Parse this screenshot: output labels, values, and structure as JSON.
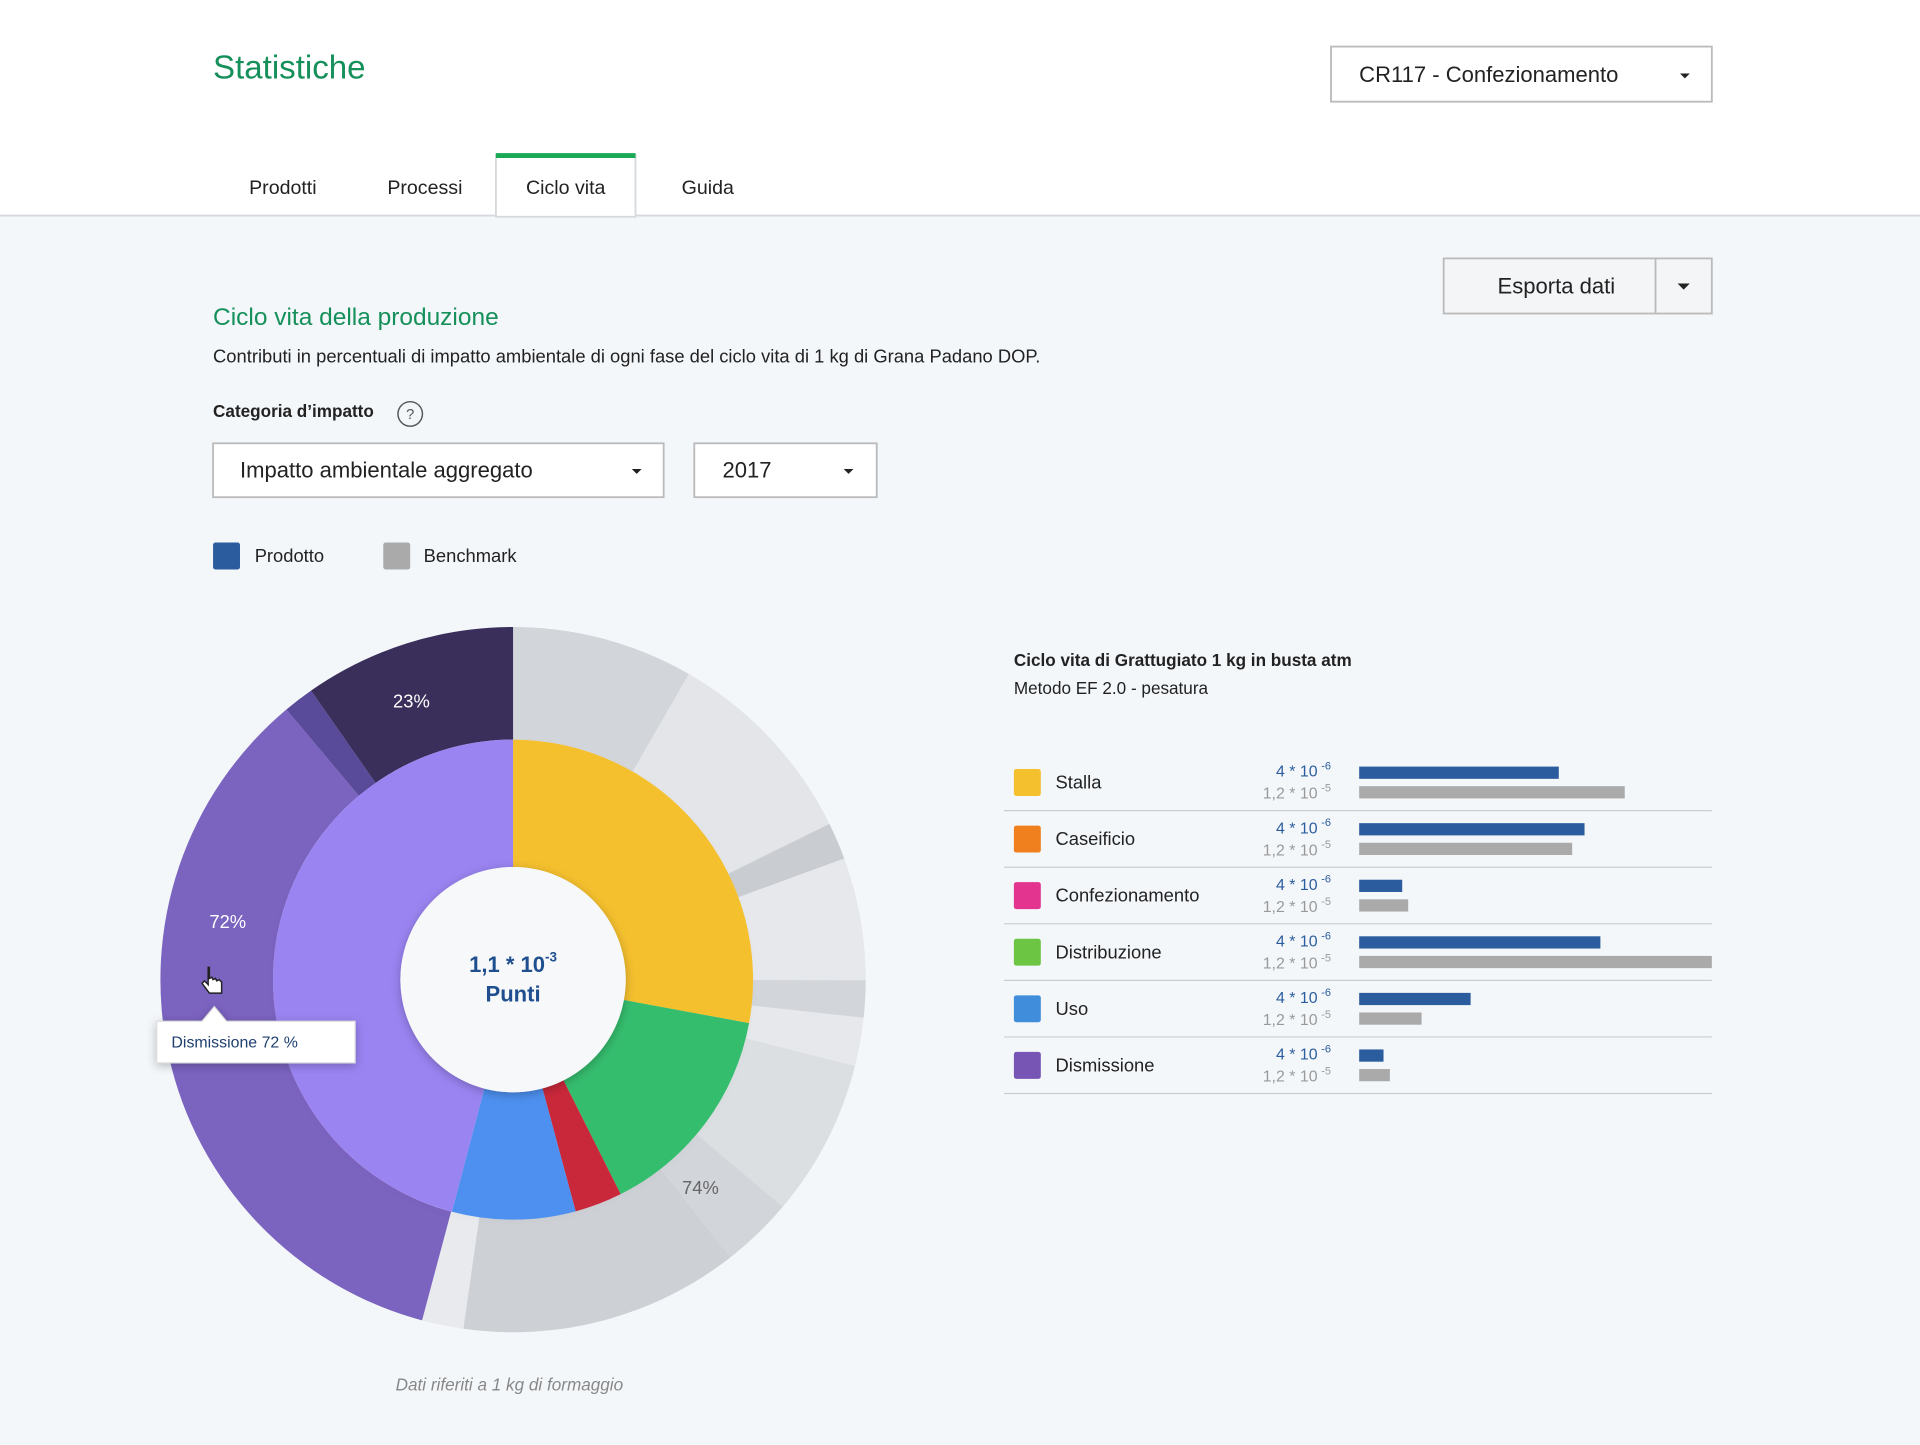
{
  "header": {
    "title": "Statistiche",
    "selector": "CR117 - Confezionamento"
  },
  "tabs": [
    "Prodotti",
    "Processi",
    "Ciclo vita",
    "Guida"
  ],
  "active_tab": 2,
  "export_button": "Esporta dati",
  "section": {
    "title": "Ciclo vita della produzione",
    "description": "Contributi in percentuali di impatto ambientale di ogni fase del ciclo vita di 1 kg di Grana Padano DOP."
  },
  "filter": {
    "label": "Categoria d’impatto",
    "help": "?",
    "category": "Impatto ambientale aggregato",
    "year": "2017"
  },
  "chart_data": [
    {
      "type": "pie",
      "rings": [
        {
          "values": [
            27.9,
            14.7,
            3.2,
            8.3,
            45.9
          ],
          "colors": [
            "#f5c02e",
            "#35bd6e",
            "#c8283a",
            "#4d90f0",
            "#9a84f2"
          ]
        },
        {
          "values": [
            8.3,
            9.4,
            1.7,
            5.6,
            1.7,
            2.2,
            7.2,
            3.3,
            12.8,
            1.9,
            34.7,
            1.4,
            9.7
          ],
          "colors": [
            "#d2d5d9",
            "#e3e5e8",
            "#c9ccd0",
            "#e6e8eb",
            "#d2d5d9",
            "#e6e8eb",
            "#dcdfe2",
            "#d2d5d9",
            "#cdd0d4",
            "#e8eaed",
            "#7b63c0",
            "#5a4a9a",
            "#3a2f5b"
          ]
        }
      ],
      "annotations": [
        "23%",
        "72%",
        "74%"
      ],
      "center": {
        "base": "1,1 * 10",
        "exp": "-3",
        "unit": "Punti"
      },
      "tooltip": "Dismissione 72 %"
    },
    {
      "type": "bar",
      "title": "Ciclo vita di Grattugiato 1 kg in busta atm",
      "subtitle": "Metodo EF 2.0 - pesatura",
      "categories": [
        "Stalla",
        "Caseificio",
        "Confezionamento",
        "Distribuzione",
        "Uso",
        "Dismissione"
      ],
      "category_colors": [
        "#f5c02e",
        "#f07f1e",
        "#e3348f",
        "#6cc644",
        "#3f8ddb",
        "#7755b5"
      ],
      "xlim": [
        0,
        100
      ],
      "series": [
        {
          "name": "Prodotto",
          "color": "#2b5c9e",
          "values": [
            56.6,
            63.9,
            12.2,
            68.4,
            31.6,
            6.9
          ],
          "value_texts": [
            {
              "base": "4 * 10",
              "exp": "-6"
            },
            {
              "base": "4 * 10",
              "exp": "-6"
            },
            {
              "base": "4 * 10",
              "exp": "-6"
            },
            {
              "base": "4 * 10",
              "exp": "-6"
            },
            {
              "base": "4 * 10",
              "exp": "-6"
            },
            {
              "base": "4 * 10",
              "exp": "-6"
            }
          ]
        },
        {
          "name": "Benchmark",
          "color": "#aaaaaa",
          "values": [
            75.3,
            60.4,
            13.9,
            100,
            17.7,
            8.7
          ],
          "value_texts": [
            {
              "base": "1,2 * 10",
              "exp": "-5"
            },
            {
              "base": "1,2 * 10",
              "exp": "-5"
            },
            {
              "base": "1,2 * 10",
              "exp": "-5"
            },
            {
              "base": "1,2 * 10",
              "exp": "-5"
            },
            {
              "base": "1,2 * 10",
              "exp": "-5"
            },
            {
              "base": "1,2 * 10",
              "exp": "-5"
            }
          ]
        }
      ]
    }
  ],
  "footnote": "Dati riferiti a 1 kg di formaggio"
}
